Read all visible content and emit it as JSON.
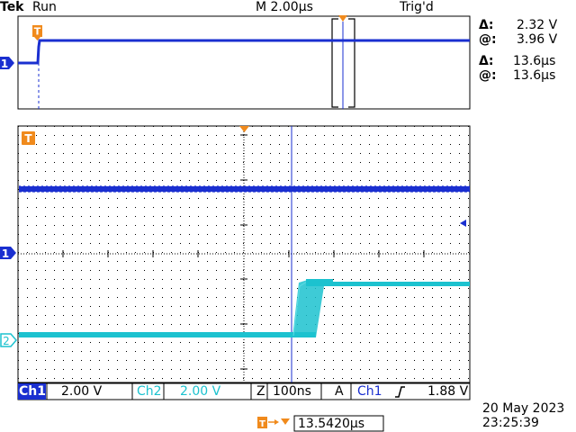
{
  "header": {
    "brand": "Tek",
    "run_state": "Run",
    "timebase": "M 2.00µs",
    "trigger_state": "Trig'd"
  },
  "cursor_readout": {
    "v_delta_symbol": "Δ:",
    "v_delta": "2.32 V",
    "v_at_symbol": "@:",
    "v_at": "3.96 V",
    "t_delta_symbol": "Δ:",
    "t_delta": "13.6µs",
    "t_at_symbol": "@:",
    "t_at": "13.6µs"
  },
  "markers": {
    "trigger_t": "T",
    "ch1": "1",
    "ch2": "2"
  },
  "status_bar": {
    "ch1_label": "Ch1",
    "ch1_scale": "2.00 V",
    "ch2_label": "Ch2",
    "ch2_scale": "2.00 V",
    "zoom_label": "Z",
    "zoom_scale": "100ns",
    "acq_label": "A",
    "trigger_source": "Ch1",
    "trigger_slope_icon": "rising-edge-icon",
    "trigger_level": "1.88 V",
    "trigger_position": "13.5420µs"
  },
  "datetime": {
    "date": "20 May 2023",
    "time": "23:25:39"
  },
  "colors": {
    "ch1": "#1a2fd0",
    "ch2": "#1cc2cf",
    "trigger_marker": "#f08a1c",
    "graticule": "#000000"
  }
}
